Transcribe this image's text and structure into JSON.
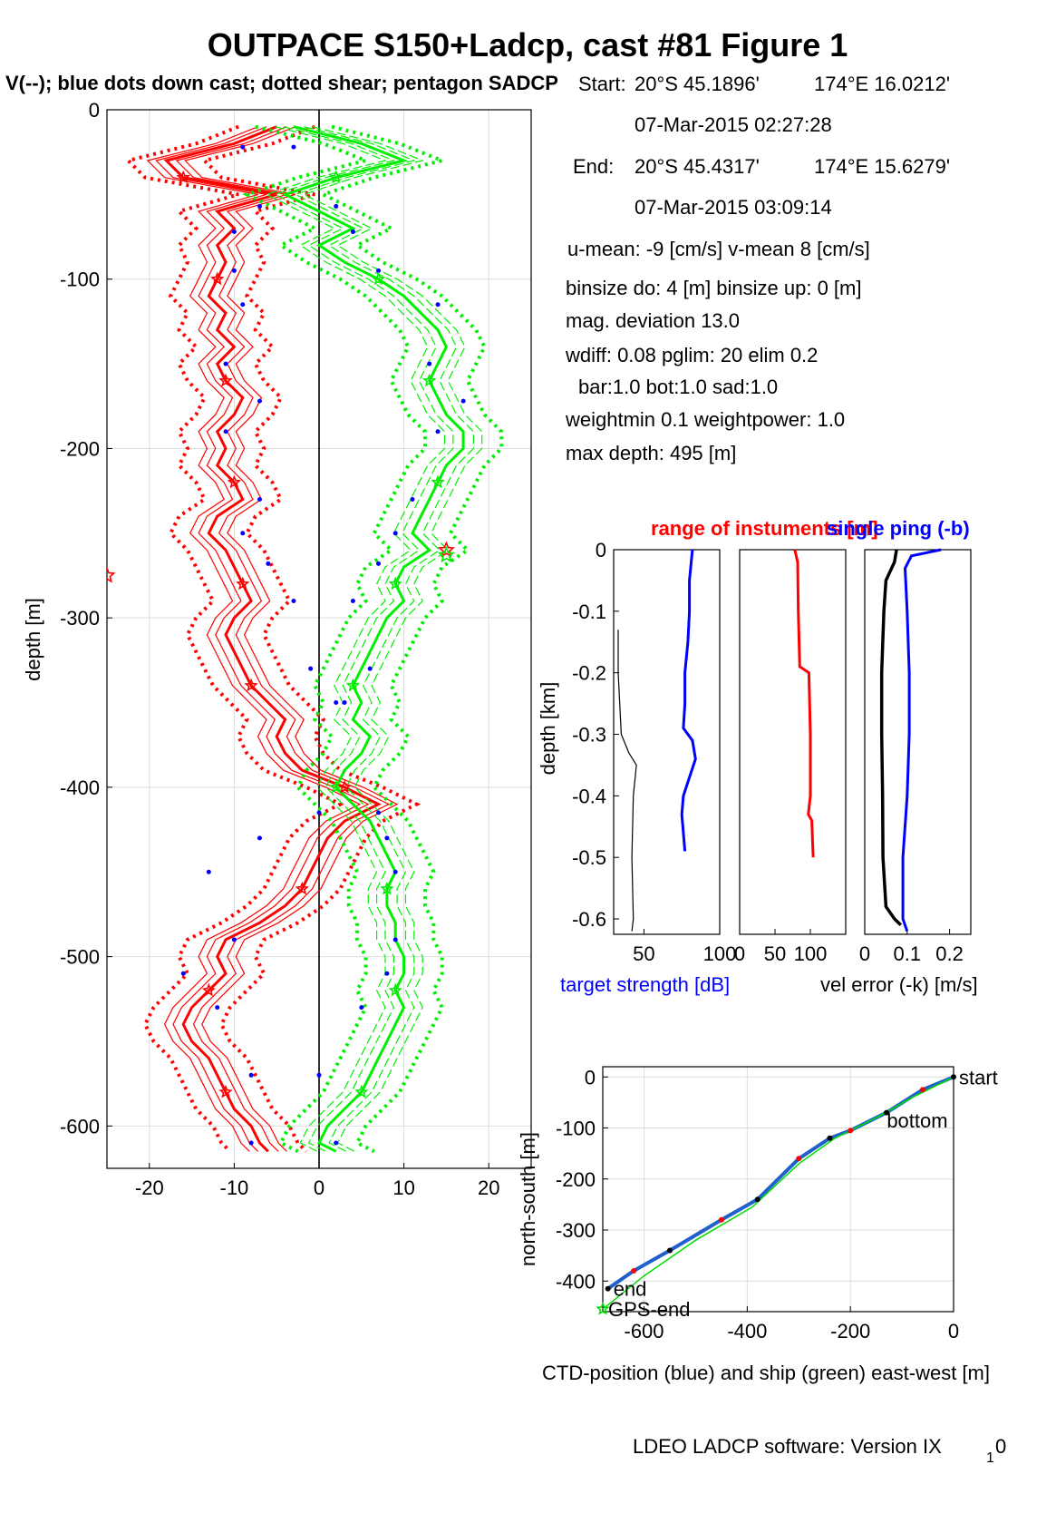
{
  "figure": {
    "title": "OUTPACE S150+Ladcp, cast #81  Figure 1",
    "subtitle": "V(--); blue dots down cast; dotted shear; pentagon SADCP",
    "footer": "LDEO LADCP software: Version IX",
    "footer_sub": "1",
    "footer_tail": "0"
  },
  "info": {
    "start_label": "Start:",
    "start_lat": "20°S 45.1896'",
    "start_lon": "174°E 16.0212'",
    "start_time": "07-Mar-2015 02:27:28",
    "end_label": "End:",
    "end_lat": "20°S 45.4317'",
    "end_lon": "174°E 15.6279'",
    "end_time": "07-Mar-2015 03:09:14",
    "means": "u-mean:  -9 [cm/s]    v-mean   8 [cm/s]",
    "binsize": "binsize do: 4 [m]  binsize up:  0 [m]",
    "magdev": "mag. deviation 13.0",
    "wdiff": "wdiff: 0.08  pglim: 20  elim 0.2",
    "bar": "bar:1.0 bot:1.0 sad:1.0",
    "weight": "weightmin 0.1  weightpower: 1.0",
    "maxdepth": "max depth: 495 [m]"
  },
  "chart_data": [
    {
      "id": "velocity-profile",
      "type": "line",
      "xlim": [
        -25,
        25
      ],
      "ylim": [
        -625,
        0
      ],
      "xticks": [
        -20,
        -10,
        0,
        10,
        20
      ],
      "yticks": [
        0,
        -100,
        -200,
        -300,
        -400,
        -500,
        -600
      ],
      "ylabel": "depth [m]",
      "grid": true,
      "colors": {
        "u": "#ff0000",
        "v": "#00ee00",
        "dots": "#0000ff"
      },
      "depth": [
        -10,
        -20,
        -30,
        -40,
        -50,
        -60,
        -70,
        -80,
        -90,
        -100,
        -110,
        -120,
        -130,
        -140,
        -150,
        -160,
        -170,
        -180,
        -190,
        -200,
        -210,
        -220,
        -230,
        -240,
        -250,
        -260,
        -270,
        -280,
        -290,
        -300,
        -310,
        -320,
        -330,
        -340,
        -350,
        -360,
        -370,
        -380,
        -390,
        -400,
        -410,
        -420,
        -430,
        -440,
        -450,
        -460,
        -470,
        -480,
        -490,
        -500,
        -510,
        -520,
        -530,
        -540,
        -550,
        -560,
        -570,
        -580,
        -590,
        -600,
        -610,
        -615
      ],
      "u": [
        -5,
        -10,
        -18,
        -16,
        -5,
        -12,
        -10,
        -12,
        -11,
        -12,
        -13,
        -11,
        -12,
        -10,
        -12,
        -11,
        -9,
        -10,
        -12,
        -11,
        -12,
        -10,
        -9,
        -12,
        -13,
        -11,
        -10,
        -9,
        -8,
        -10,
        -11,
        -10,
        -9,
        -8,
        -6,
        -4,
        -5,
        -4,
        -2,
        3,
        7,
        3,
        1,
        0,
        -1,
        -2,
        -4,
        -7,
        -11,
        -12,
        -11,
        -13,
        -15,
        -16,
        -15,
        -13,
        -12,
        -11,
        -10,
        -8,
        -7,
        -6
      ],
      "v": [
        -3,
        5,
        10,
        2,
        -4,
        0,
        4,
        0,
        3,
        7,
        10,
        12,
        14,
        15,
        14,
        13,
        14,
        15,
        17,
        17,
        15,
        14,
        13,
        12,
        11,
        13,
        10,
        9,
        10,
        8,
        7,
        6,
        5,
        4,
        5,
        4,
        6,
        5,
        3,
        2,
        4,
        6,
        7,
        8,
        9,
        8,
        8,
        9,
        9,
        10,
        10,
        9,
        10,
        9,
        8,
        7,
        6,
        5,
        3,
        1,
        0,
        2
      ],
      "dots_u": [
        -9,
        -7,
        -10,
        -10,
        -9,
        -11,
        -7,
        -11,
        -7,
        -9,
        -6,
        -3,
        -1,
        3,
        0,
        -7,
        -13,
        -10,
        -16,
        -12,
        -8,
        -8
      ],
      "dots_v": [
        -22,
        -57,
        -72,
        -95,
        -115,
        -150,
        -172,
        -190,
        -230,
        -250,
        -268,
        -290,
        -330,
        -350,
        -415,
        -430,
        -450,
        -490,
        -510,
        -530,
        -570,
        -610
      ],
      "annotations": [
        {
          "x": 15,
          "y": -260,
          "series": "u"
        },
        {
          "x": -25,
          "y": -275,
          "series": "u"
        },
        {
          "x": 15,
          "y": -263,
          "series": "v"
        }
      ]
    },
    {
      "id": "target-strength",
      "type": "line",
      "xlim": [
        30,
        100
      ],
      "ylim": [
        -0.625,
        0
      ],
      "xticks": [
        50,
        100
      ],
      "xticklabels": [
        "50",
        "100"
      ],
      "yticks": [
        0,
        -0.1,
        -0.2,
        -0.3,
        -0.4,
        -0.5,
        -0.6
      ],
      "ylabel": "depth [km]",
      "xlabel": "target strength [dB]",
      "series": [
        {
          "color": "#0000ff",
          "depth": [
            0,
            -0.05,
            -0.1,
            -0.15,
            -0.2,
            -0.25,
            -0.29,
            -0.31,
            -0.34,
            -0.37,
            -0.4,
            -0.43,
            -0.46,
            -0.49
          ],
          "values": [
            82,
            80,
            80,
            79,
            77,
            77,
            76,
            82,
            84,
            80,
            76,
            75,
            76,
            77
          ]
        },
        {
          "color": "#000000",
          "depth": [
            -0.13,
            -0.2,
            -0.3,
            -0.33,
            -0.35,
            -0.4,
            -0.5,
            -0.6,
            -0.62
          ],
          "values": [
            33,
            33,
            35,
            40,
            45,
            43,
            42,
            43,
            42
          ]
        }
      ]
    },
    {
      "id": "range",
      "type": "line",
      "xlim": [
        0,
        150
      ],
      "ylim": [
        -0.625,
        0
      ],
      "xticks": [
        0,
        50,
        100
      ],
      "xticklabels": [
        "0",
        "50",
        "100"
      ],
      "title": "range of instuments [m]",
      "series": [
        {
          "color": "#ff0000",
          "depth": [
            0,
            -0.01,
            -0.02,
            -0.1,
            -0.19,
            -0.2,
            -0.3,
            -0.4,
            -0.43,
            -0.44,
            -0.5
          ],
          "values": [
            78,
            80,
            82,
            83,
            85,
            98,
            100,
            100,
            97,
            102,
            104
          ]
        }
      ]
    },
    {
      "id": "vel-error",
      "type": "line",
      "xlim": [
        0,
        0.25
      ],
      "ylim": [
        -0.625,
        0
      ],
      "xticks": [
        0,
        0.1,
        0.2
      ],
      "xticklabels": [
        "0",
        "0.1",
        "0.2"
      ],
      "title": "single ping (-b)",
      "xlabel": "vel error (-k) [m/s]",
      "series": [
        {
          "color": "#000000",
          "depth": [
            0,
            -0.02,
            -0.05,
            -0.1,
            -0.2,
            -0.3,
            -0.4,
            -0.5,
            -0.58,
            -0.6,
            -0.61
          ],
          "values": [
            0.075,
            0.07,
            0.05,
            0.045,
            0.04,
            0.04,
            0.042,
            0.043,
            0.05,
            0.07,
            0.085
          ]
        },
        {
          "color": "#0000ff",
          "depth": [
            0,
            -0.01,
            -0.03,
            -0.1,
            -0.2,
            -0.3,
            -0.4,
            -0.5,
            -0.6,
            -0.62
          ],
          "values": [
            0.18,
            0.11,
            0.095,
            0.1,
            0.105,
            0.105,
            0.1,
            0.09,
            0.09,
            0.1
          ]
        }
      ]
    },
    {
      "id": "track",
      "type": "line",
      "xlim": [
        -680,
        0
      ],
      "ylim": [
        -460,
        20
      ],
      "xticks": [
        -600,
        -400,
        -200,
        0
      ],
      "yticks": [
        0,
        -100,
        -200,
        -300,
        -400
      ],
      "ylabel": "north-south [m]",
      "xlabel": "CTD-position (blue) and ship (green) east-west [m]",
      "series": [
        {
          "name": "CTD-position",
          "color": "#2060cc",
          "x": [
            0,
            -60,
            -130,
            -200,
            -240,
            -300,
            -380,
            -450,
            -550,
            -620,
            -670
          ],
          "y": [
            0,
            -25,
            -70,
            -105,
            -120,
            -160,
            -240,
            -280,
            -340,
            -380,
            -415
          ]
        },
        {
          "name": "ship",
          "color": "#00dd00",
          "x": [
            0,
            -80,
            -150,
            -230,
            -300,
            -390,
            -500,
            -600,
            -680
          ],
          "y": [
            0,
            -40,
            -80,
            -120,
            -170,
            -255,
            -320,
            -390,
            -455
          ]
        }
      ],
      "labels": [
        {
          "text": "start",
          "x": 0,
          "y": 0
        },
        {
          "text": "bottom",
          "x": -140,
          "y": -85
        },
        {
          "text": "end",
          "x": -670,
          "y": -415
        },
        {
          "text": "GPS-end",
          "x": -680,
          "y": -455
        }
      ]
    }
  ]
}
